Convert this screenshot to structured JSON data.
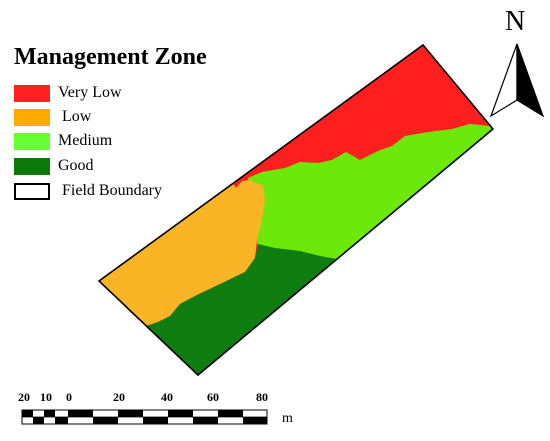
{
  "legend": {
    "title": "Management Zone",
    "items": [
      {
        "label": "Very Low",
        "color": "#ff2020",
        "border": "none"
      },
      {
        "label": " Low",
        "color": "#ffaa00",
        "border": "none"
      },
      {
        "label": "Medium",
        "color": "#66ff33",
        "border": "none"
      },
      {
        "label": "Good",
        "color": "#0b7a0b",
        "border": "none"
      },
      {
        "label": "Field Boundary",
        "color": "#ffffff",
        "border": "#000000"
      }
    ]
  },
  "scale_bar": {
    "labels": [
      "20",
      "10",
      "0",
      "20",
      "40",
      "60",
      "80"
    ],
    "unit": "m"
  },
  "north_arrow": {
    "label": "N"
  },
  "zone_colors": {
    "very_low": "#ff1f1f",
    "low": "#f9b526",
    "medium": "#6ce80a",
    "good": "#0f7d0f",
    "boundary": "#000000"
  }
}
